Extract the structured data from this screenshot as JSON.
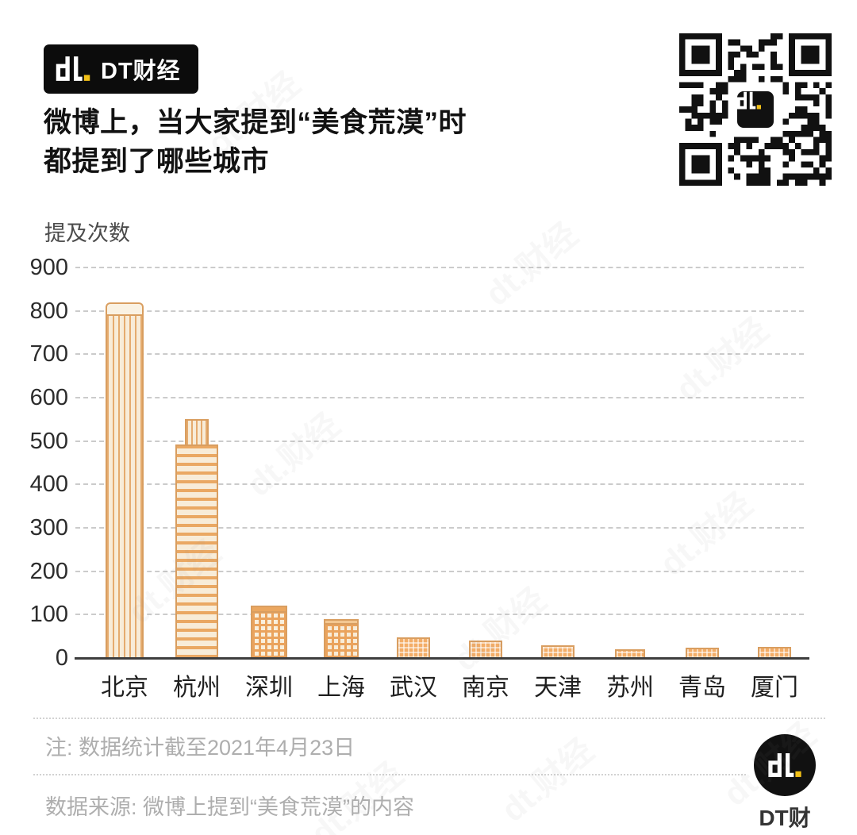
{
  "brand": {
    "mark": "dt.",
    "name": "DT财经"
  },
  "header": {
    "title_line1": "微博上，当大家提到“美食荒漠”时",
    "title_line2": "都提到了哪些城市"
  },
  "chart_data": {
    "type": "bar",
    "title": "微博上，当大家提到“美食荒漠”时都提到了哪些城市",
    "ylabel": "提及次数",
    "xlabel": "",
    "categories": [
      "北京",
      "杭州",
      "深圳",
      "上海",
      "武汉",
      "南京",
      "天津",
      "苏州",
      "青岛",
      "厦门"
    ],
    "values": [
      820,
      550,
      120,
      90,
      48,
      40,
      30,
      20,
      24,
      25
    ],
    "ylim": [
      0,
      900
    ],
    "yticks": [
      0,
      100,
      200,
      300,
      400,
      500,
      600,
      700,
      800,
      900
    ],
    "grid": "horizontal dashed",
    "legend": "none",
    "bar_style": "orange building illustrations"
  },
  "footer": {
    "note": "注: 数据统计截至2021年4月23日",
    "source": "数据来源: 微博上提到“美食荒漠”的内容",
    "brand": "DT财经"
  },
  "watermark_text": "dt.财经",
  "icons": {
    "brand_mark": "dt-logo-mark",
    "qr": "qr-code"
  },
  "colors": {
    "accent_yellow": "#f3c117",
    "logo_black": "#0c0c0c",
    "building_line": "#d99e60",
    "building_fill": "#f8ecd8",
    "building_orange": "#f3ad67",
    "grid_gray": "#cbcbcb",
    "muted_text": "#aeaeae"
  }
}
